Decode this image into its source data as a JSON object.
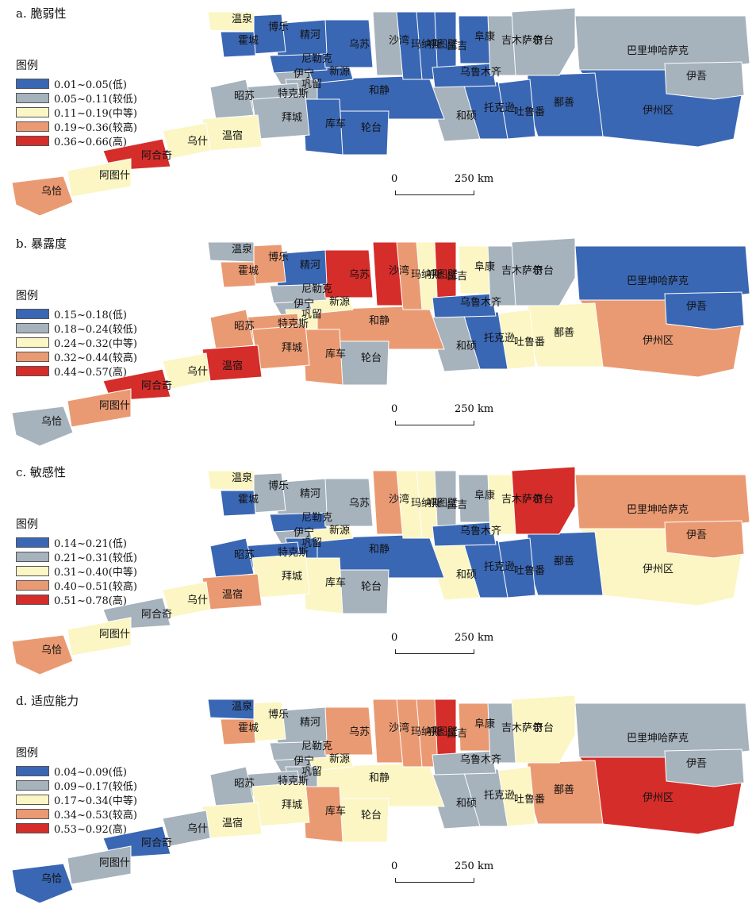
{
  "colors": {
    "low": "#3a67b3",
    "lowish": "#a6b2bc",
    "mid": "#fbf6c3",
    "highish": "#ea9a72",
    "high": "#d52d2a"
  },
  "legend_title": "图例",
  "scalebar": {
    "zero": "0",
    "max": "250 km"
  },
  "region_order": [
    "伊州区",
    "鄯善",
    "吐鲁番",
    "托克逊",
    "和硕",
    "和静",
    "新源",
    "伊宁",
    "巩留",
    "特克斯",
    "昭苏",
    "尼勒克",
    "轮台",
    "库车",
    "拜城",
    "温宿",
    "乌什",
    "阿合奇",
    "阿图什",
    "乌恰",
    "乌苏",
    "精河",
    "博乐",
    "温泉",
    "霍城",
    "沙湾",
    "玛纳斯",
    "呼图壁",
    "昌吉",
    "乌鲁木齐",
    "阜康",
    "吉木萨尔",
    "奇台",
    "巴里坤哈萨克",
    "伊吾"
  ],
  "panels": [
    {
      "id": "a",
      "title": "a. 脆弱性",
      "legend": [
        {
          "label": "0.01~0.05(低)",
          "class": "low"
        },
        {
          "label": "0.05~0.11(较低)",
          "class": "lowish"
        },
        {
          "label": "0.11~0.19(中等)",
          "class": "mid"
        },
        {
          "label": "0.19~0.36(较高)",
          "class": "highish"
        },
        {
          "label": "0.36~0.66(高)",
          "class": "high"
        }
      ],
      "regions": [
        "low",
        "low",
        "low",
        "low",
        "lowish",
        "low",
        "low",
        "lowish",
        "lowish",
        "lowish",
        "lowish",
        "low",
        "low",
        "low",
        "lowish",
        "mid",
        "mid",
        "high",
        "mid",
        "highish",
        "low",
        "low",
        "low",
        "mid",
        "low",
        "lowish",
        "low",
        "low",
        "low",
        "low",
        "low",
        "lowish",
        "lowish",
        "lowish",
        "lowish"
      ]
    },
    {
      "id": "b",
      "title": "b. 暴露度",
      "legend": [
        {
          "label": "0.15~0.18(低)",
          "class": "low"
        },
        {
          "label": "0.18~0.24(较低)",
          "class": "lowish"
        },
        {
          "label": "0.24~0.32(中等)",
          "class": "mid"
        },
        {
          "label": "0.32~0.44(较高)",
          "class": "highish"
        },
        {
          "label": "0.44~0.57(高)",
          "class": "high"
        }
      ],
      "regions": [
        "highish",
        "mid",
        "mid",
        "low",
        "lowish",
        "highish",
        "mid",
        "lowish",
        "mid",
        "highish",
        "highish",
        "lowish",
        "lowish",
        "highish",
        "highish",
        "high",
        "mid",
        "high",
        "highish",
        "lowish",
        "high",
        "low",
        "highish",
        "lowish",
        "highish",
        "high",
        "highish",
        "mid",
        "high",
        "low",
        "mid",
        "lowish",
        "lowish",
        "low",
        "low"
      ]
    },
    {
      "id": "c",
      "title": "c. 敏感性",
      "legend": [
        {
          "label": "0.14~0.21(低)",
          "class": "low"
        },
        {
          "label": "0.21~0.31(较低)",
          "class": "lowish"
        },
        {
          "label": "0.31~0.40(中等)",
          "class": "mid"
        },
        {
          "label": "0.40~0.51(较高)",
          "class": "highish"
        },
        {
          "label": "0.51~0.78(高)",
          "class": "high"
        }
      ],
      "regions": [
        "mid",
        "low",
        "low",
        "low",
        "mid",
        "low",
        "mid",
        "lowish",
        "low",
        "low",
        "low",
        "low",
        "lowish",
        "mid",
        "mid",
        "highish",
        "mid",
        "lowish",
        "mid",
        "highish",
        "lowish",
        "lowish",
        "lowish",
        "mid",
        "low",
        "highish",
        "mid",
        "mid",
        "lowish",
        "low",
        "lowish",
        "mid",
        "high",
        "highish",
        "highish"
      ]
    },
    {
      "id": "d",
      "title": "d. 适应能力",
      "legend": [
        {
          "label": "0.04~0.09(低)",
          "class": "low"
        },
        {
          "label": "0.09~0.17(较低)",
          "class": "lowish"
        },
        {
          "label": "0.17~0.34(中等)",
          "class": "mid"
        },
        {
          "label": "0.34~0.53(较高)",
          "class": "highish"
        },
        {
          "label": "0.53~0.92(高)",
          "class": "high"
        }
      ],
      "regions": [
        "high",
        "highish",
        "mid",
        "lowish",
        "lowish",
        "mid",
        "mid",
        "lowish",
        "lowish",
        "lowish",
        "lowish",
        "lowish",
        "mid",
        "highish",
        "mid",
        "mid",
        "lowish",
        "low",
        "lowish",
        "low",
        "highish",
        "lowish",
        "mid",
        "low",
        "highish",
        "highish",
        "highish",
        "highish",
        "high",
        "lowish",
        "highish",
        "lowish",
        "mid",
        "lowish",
        "lowish"
      ]
    }
  ]
}
